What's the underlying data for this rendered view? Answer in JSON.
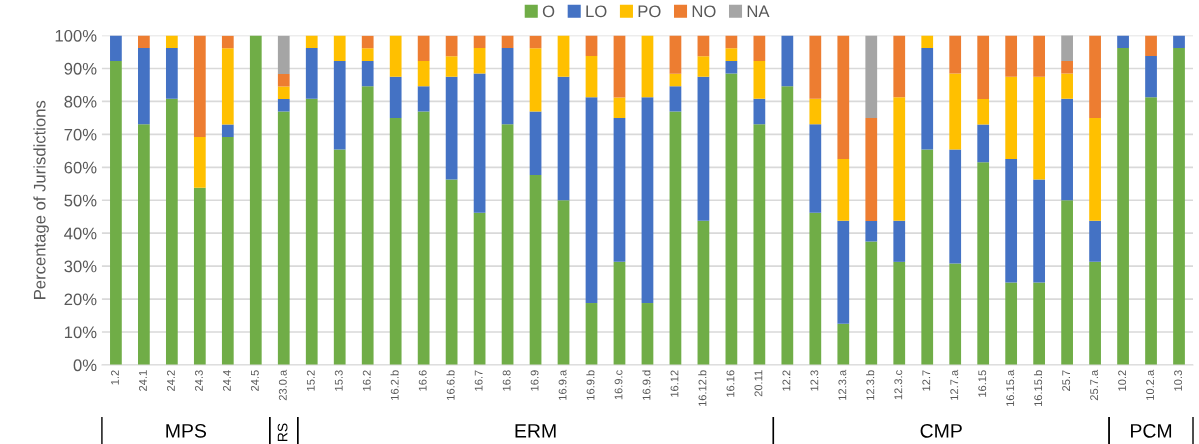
{
  "chart_data": {
    "type": "bar",
    "stacked": true,
    "ylabel": "Percentage of Jurisdictions",
    "ylim": [
      0,
      100
    ],
    "yticks": [
      {
        "value": 0,
        "label": "0%"
      },
      {
        "value": 10,
        "label": "10%"
      },
      {
        "value": 20,
        "label": "20%"
      },
      {
        "value": 30,
        "label": "30%"
      },
      {
        "value": 40,
        "label": "40%"
      },
      {
        "value": 50,
        "label": "50%"
      },
      {
        "value": 60,
        "label": "60%"
      },
      {
        "value": 70,
        "label": "70%"
      },
      {
        "value": 80,
        "label": "80%"
      },
      {
        "value": 90,
        "label": "90%"
      },
      {
        "value": 100,
        "label": "100%"
      }
    ],
    "grid": "y",
    "legend": "top",
    "categories": [
      "1.2",
      "24.1",
      "24.2",
      "24.3",
      "24.4",
      "24.5",
      "23.0.a",
      "15.2",
      "15.3",
      "16.2",
      "16.2.b",
      "16.6",
      "16.6.b",
      "16.7",
      "16.8",
      "16.9",
      "16.9.a",
      "16.9.b",
      "16.9.c",
      "16.9.d",
      "16.12",
      "16.12.b",
      "16.16",
      "20.11",
      "12.2",
      "12.3",
      "12.3.a",
      "12.3.b",
      "12.3.c",
      "12.7",
      "12.7.a",
      "16.15",
      "16.15.a",
      "16.15.b",
      "25.7",
      "25.7.a",
      "10.2",
      "10.2.a",
      "10.3"
    ],
    "series": [
      {
        "name": "O",
        "color": "#70ad47",
        "values": [
          92.3,
          73.1,
          80.8,
          53.8,
          69.2,
          100,
          76.9,
          80.8,
          65.4,
          84.6,
          75,
          76.9,
          56.3,
          46.2,
          73.1,
          57.7,
          50,
          18.8,
          31.3,
          18.8,
          76.9,
          43.8,
          88.5,
          73.1,
          84.6,
          46.2,
          12.5,
          37.5,
          31.3,
          65.4,
          30.8,
          61.5,
          25,
          25,
          50,
          31.3,
          96.2,
          81.3,
          96.2
        ]
      },
      {
        "name": "LO",
        "color": "#4472c4",
        "values": [
          7.7,
          23.1,
          15.4,
          null,
          3.8,
          null,
          3.8,
          15.4,
          26.9,
          7.7,
          12.5,
          7.7,
          31.2,
          42.3,
          23.1,
          19.2,
          37.5,
          62.5,
          43.7,
          62.5,
          7.7,
          43.7,
          3.8,
          7.7,
          15.4,
          26.9,
          31.3,
          6.2,
          12.5,
          30.8,
          34.6,
          11.5,
          37.5,
          31.3,
          30.8,
          12.5,
          3.8,
          12.5,
          3.8
        ]
      },
      {
        "name": "PO",
        "color": "#ffc000",
        "values": [
          null,
          null,
          3.8,
          15.4,
          23.1,
          null,
          3.8,
          3.8,
          7.7,
          3.8,
          12.5,
          7.7,
          6.2,
          7.7,
          null,
          19.2,
          12.5,
          12.5,
          6.2,
          18.7,
          3.8,
          6.2,
          3.8,
          11.5,
          null,
          7.7,
          18.7,
          null,
          37.5,
          3.8,
          23.1,
          7.7,
          25,
          31.2,
          7.7,
          31.2,
          null,
          null,
          null
        ]
      },
      {
        "name": "NO",
        "color": "#ed7d31",
        "values": [
          null,
          3.8,
          null,
          30.8,
          3.8,
          null,
          3.8,
          null,
          null,
          3.8,
          null,
          7.7,
          6.2,
          3.8,
          3.8,
          3.8,
          null,
          6.2,
          18.8,
          null,
          11.6,
          6.3,
          3.9,
          7.7,
          null,
          19.2,
          37.5,
          31.3,
          18.7,
          null,
          11.5,
          19.3,
          12.5,
          12.5,
          3.8,
          25,
          null,
          6.2,
          null
        ]
      },
      {
        "name": "NA",
        "color": "#a5a5a5",
        "values": [
          null,
          null,
          null,
          null,
          null,
          null,
          11.6,
          null,
          null,
          null,
          null,
          null,
          null,
          null,
          null,
          null,
          null,
          null,
          null,
          null,
          null,
          null,
          null,
          null,
          null,
          null,
          null,
          25,
          null,
          null,
          null,
          null,
          null,
          null,
          7.9,
          null,
          null,
          null,
          null
        ]
      }
    ],
    "annotations": [
      "MPS",
      "RS",
      "ERM",
      "CMP",
      "PCM"
    ]
  }
}
